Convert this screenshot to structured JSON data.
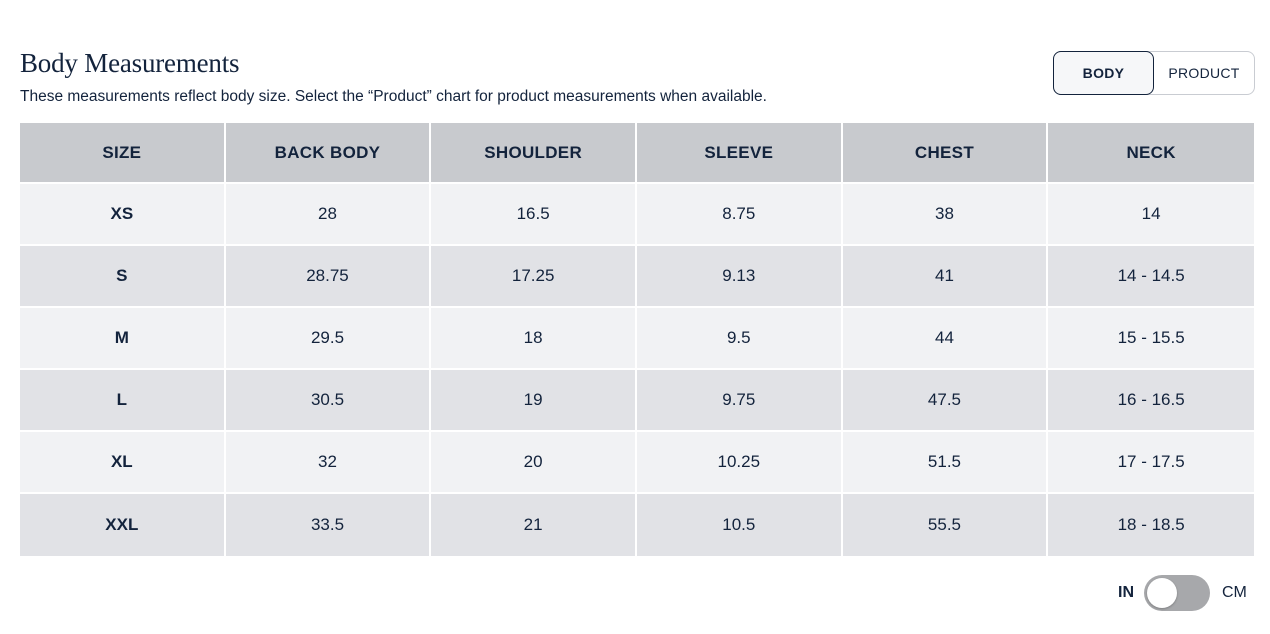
{
  "header": {
    "title": "Body Measurements",
    "subtitle": "These measurements reflect body size. Select the “Product” chart for product measurements when available."
  },
  "view_toggle": {
    "body_label": "BODY",
    "product_label": "PRODUCT",
    "selected": "BODY"
  },
  "table": {
    "columns": [
      "SIZE",
      "BACK BODY",
      "SHOULDER",
      "SLEEVE",
      "CHEST",
      "NECK"
    ],
    "rows": [
      [
        "XS",
        "28",
        "16.5",
        "8.75",
        "38",
        "14"
      ],
      [
        "S",
        "28.75",
        "17.25",
        "9.13",
        "41",
        "14 - 14.5"
      ],
      [
        "M",
        "29.5",
        "18",
        "9.5",
        "44",
        "15 - 15.5"
      ],
      [
        "L",
        "30.5",
        "19",
        "9.75",
        "47.5",
        "16 - 16.5"
      ],
      [
        "XL",
        "32",
        "20",
        "10.25",
        "51.5",
        "17 - 17.5"
      ],
      [
        "XXL",
        "33.5",
        "21",
        "10.5",
        "55.5",
        "18 - 18.5"
      ]
    ]
  },
  "unit_toggle": {
    "left_label": "IN",
    "right_label": "CM",
    "selected": "IN"
  },
  "colors": {
    "text": "#13233c",
    "header_bg": "#c8cace",
    "row_light": "#f1f2f4",
    "row_dark": "#e1e2e6",
    "switch_track": "#a7a8ab"
  }
}
